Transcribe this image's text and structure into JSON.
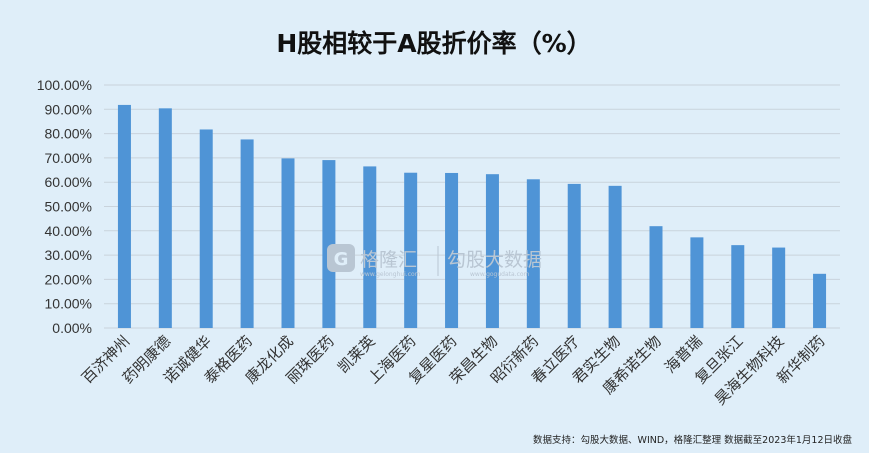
{
  "chart_data": {
    "type": "bar",
    "title": "H股相较于A股折价率（%）",
    "categories": [
      "百济神州",
      "药明康德",
      "诺诚健华",
      "泰格医药",
      "康龙化成",
      "丽珠医药",
      "凯莱英",
      "上海医药",
      "复星医药",
      "荣昌生物",
      "昭衍新药",
      "春立医疗",
      "君实生物",
      "康希诺生物",
      "海普瑞",
      "复旦张江",
      "昊海生物科技",
      "新华制药"
    ],
    "values": [
      91.8,
      90.4,
      81.7,
      77.6,
      69.8,
      69.1,
      66.5,
      63.9,
      63.8,
      63.3,
      61.2,
      59.3,
      58.5,
      41.9,
      37.3,
      34.1,
      33.1,
      22.3
    ],
    "ylim": [
      0,
      100
    ],
    "yticks": [
      "0.00%",
      "10.00%",
      "20.00%",
      "30.00%",
      "40.00%",
      "50.00%",
      "60.00%",
      "70.00%",
      "80.00%",
      "90.00%",
      "100.00%"
    ],
    "grid": true,
    "bar_color": "#4f94d6"
  },
  "watermark": {
    "brand1": "格隆汇",
    "brand1_sub": "www.gelonghui.com",
    "brand2": "勾股大数据",
    "brand2_sub": "www.gogudata.com"
  },
  "source": "数据支持：勾股大数据、WIND，格隆汇整理 数据截至2023年1月12日收盘"
}
